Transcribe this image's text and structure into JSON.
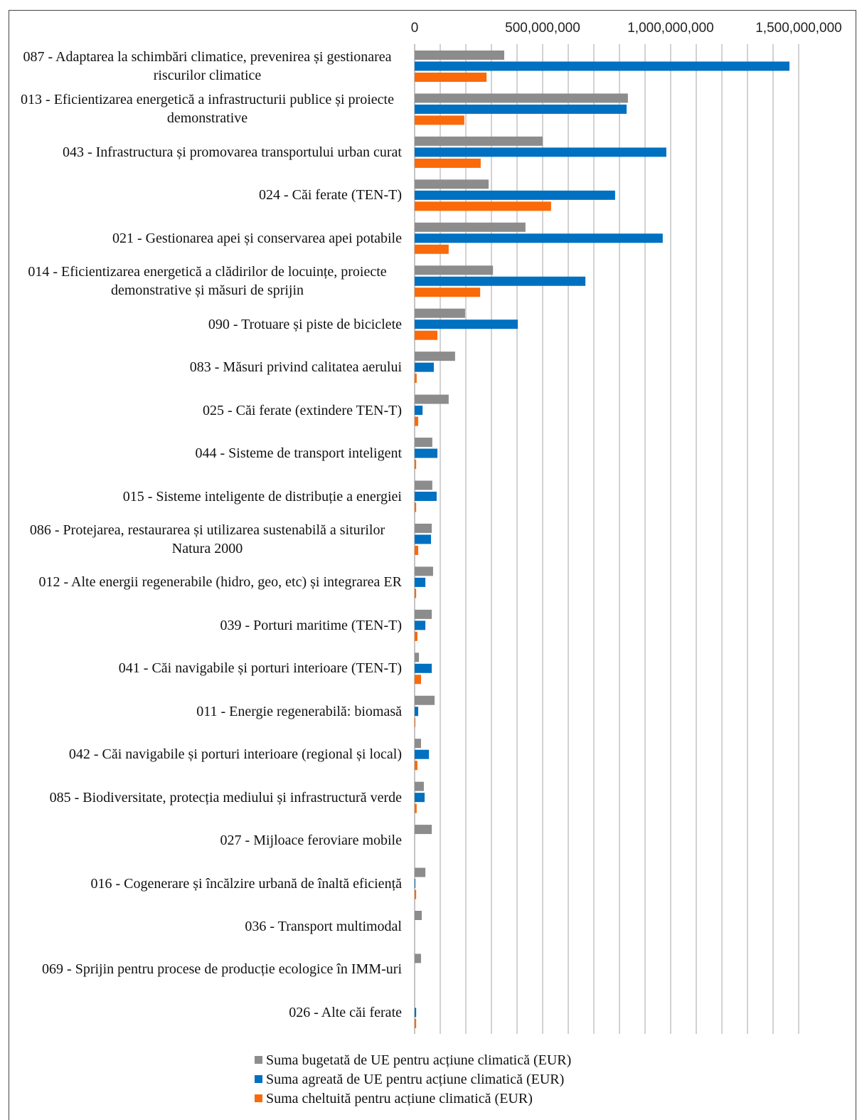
{
  "chart_data": {
    "type": "hbar",
    "categories": [
      "087 - Adaptarea la schimbări climatice, prevenirea și gestionarea riscurilor climatice",
      "013 - Eficientizarea energetică a infrastructurii publice și proiecte demonstrative",
      "043 - Infrastructura și promovarea transportului urban curat",
      "024 - Căi ferate (TEN-T)",
      "021 - Gestionarea apei și conservarea apei potabile",
      "014 - Eficientizarea energetică a clădirilor de locuințe, proiecte demonstrative și măsuri de sprijin",
      "090 - Trotuare și piste de biciclete",
      "083 - Măsuri privind calitatea aerului",
      "025 - Căi ferate (extindere TEN-T)",
      "044 - Sisteme de transport inteligent",
      "015 - Sisteme inteligente de distribuție a energiei",
      "086 - Protejarea, restaurarea și utilizarea sustenabilă a siturilor Natura 2000",
      "012 - Alte energii regenerabile (hidro, geo, etc) și integrarea ER",
      "039 - Porturi maritime (TEN-T)",
      "041 - Căi navigabile și porturi interioare (TEN-T)",
      "011 - Energie regenerabilă: biomasă",
      "042 - Căi navigabile și porturi interioare (regional și local)",
      "085 - Biodiversitate, protecția mediului și infrastructură verde",
      "027 - Mijloace feroviare mobile",
      "016 - Cogenerare și încălzire urbană de înaltă eficiență",
      "036 - Transport multimodal",
      "069 - Sprijin pentru procese de producție ecologice în IMM-uri",
      "026 - Alte căi ferate"
    ],
    "series": [
      {
        "name": "Suma bugetată de UE pentru acțiune climatică (EUR)",
        "color": "#8c8c8c",
        "values": [
          350000000,
          833000000,
          500000000,
          289000000,
          433000000,
          306000000,
          197000000,
          158000000,
          133000000,
          69000000,
          69000000,
          67000000,
          72000000,
          67000000,
          17000000,
          78000000,
          25000000,
          36000000,
          67000000,
          42000000,
          28000000,
          25000000,
          0
        ]
      },
      {
        "name": "Suma agreată de UE pentru acțiune climatică (EUR)",
        "color": "#0070c0",
        "values": [
          1464000000,
          828000000,
          983000000,
          783000000,
          969000000,
          667000000,
          403000000,
          75000000,
          31000000,
          89000000,
          86000000,
          64000000,
          42000000,
          42000000,
          67000000,
          14000000,
          56000000,
          39000000,
          0,
          3000000,
          0,
          0,
          6000000
        ]
      },
      {
        "name": "Suma cheltuită pentru acțiune climatică (EUR)",
        "color": "#fa6a0a",
        "values": [
          281000000,
          194000000,
          258000000,
          533000000,
          133000000,
          256000000,
          89000000,
          8000000,
          14000000,
          6000000,
          6000000,
          14000000,
          6000000,
          11000000,
          25000000,
          3000000,
          11000000,
          8000000,
          0,
          6000000,
          0,
          0,
          6000000
        ]
      }
    ],
    "xlim": [
      0,
      1500000000
    ],
    "xticks": [
      0,
      {
        "value": 500000000,
        "label": "500,000,000"
      },
      {
        "value": 1000000000,
        "label": "1,000,000,000"
      },
      {
        "value": 1500000000,
        "label": "1,500,000,000"
      }
    ],
    "minor_xticks": [
      100000000,
      200000000,
      300000000,
      400000000,
      600000000,
      700000000,
      800000000,
      900000000,
      1100000000,
      1200000000,
      1300000000,
      1400000000
    ],
    "grid": true,
    "legend": "bottom"
  }
}
